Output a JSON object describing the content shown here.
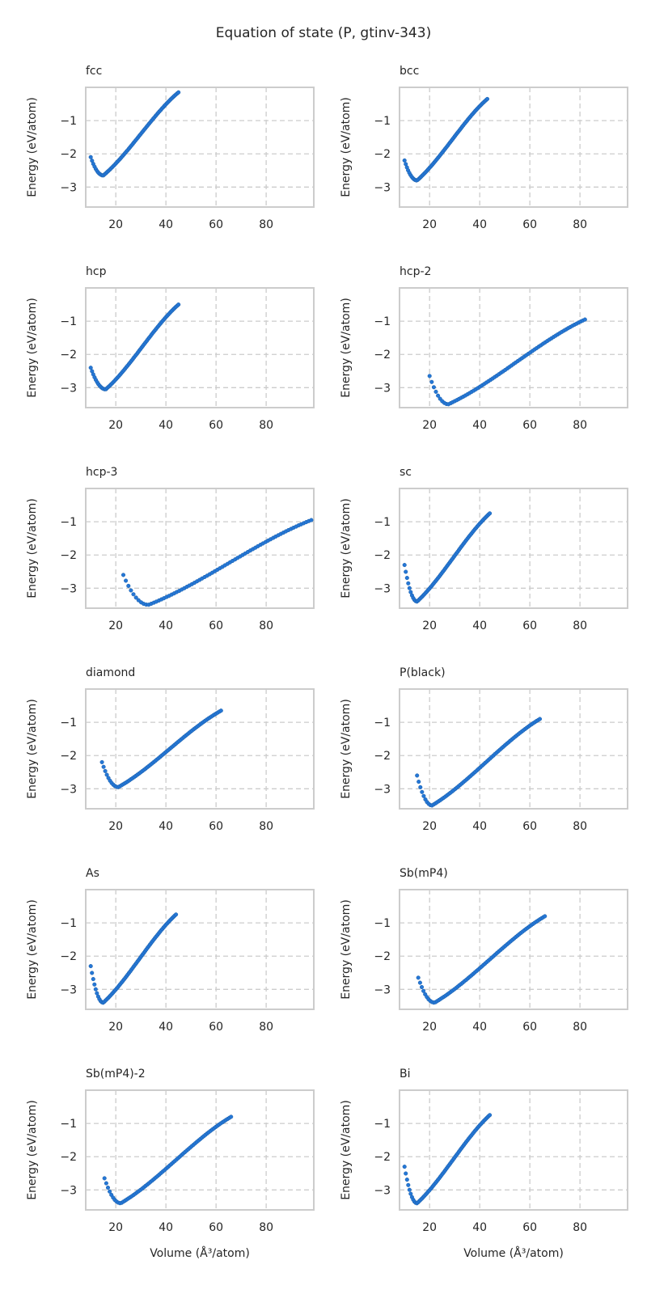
{
  "figure": {
    "title": "Equation of state (P, gtinv-343)",
    "xlabel": "Volume (Å³/atom)",
    "ylabel": "Energy (eV/atom)",
    "point_color": "#2577d6",
    "grid_color": "#cccccc",
    "frame_color": "#cccccc",
    "text_color": "#262626"
  },
  "chart_data": [
    {
      "type": "scatter",
      "title": "fcc",
      "xlabel": "",
      "ylabel": "Energy (eV/atom)",
      "xlim": [
        8,
        99
      ],
      "ylim": [
        -3.6,
        0
      ],
      "xticks": [
        20,
        40,
        60,
        80
      ],
      "yticks": [
        -1,
        -2,
        -3
      ],
      "xticklabels": [
        "20",
        "40",
        "60",
        "80"
      ],
      "yticklabels": [
        "−1",
        "−2",
        "−3"
      ],
      "grid": true,
      "curve": {
        "v_start": 10,
        "v_min": 15,
        "v_end": 45,
        "e_start": -2.1,
        "e_min": -2.65,
        "e_end": -0.15,
        "n": 70
      }
    },
    {
      "type": "scatter",
      "title": "bcc",
      "xlabel": "",
      "ylabel": "Energy (eV/atom)",
      "xlim": [
        8,
        99
      ],
      "ylim": [
        -3.6,
        0
      ],
      "xticks": [
        20,
        40,
        60,
        80
      ],
      "yticks": [
        -1,
        -2,
        -3
      ],
      "xticklabels": [
        "20",
        "40",
        "60",
        "80"
      ],
      "yticklabels": [
        "−1",
        "−2",
        "−3"
      ],
      "grid": true,
      "curve": {
        "v_start": 10,
        "v_min": 15,
        "v_end": 43,
        "e_start": -2.2,
        "e_min": -2.8,
        "e_end": -0.35,
        "n": 70
      }
    },
    {
      "type": "scatter",
      "title": "hcp",
      "xlabel": "",
      "ylabel": "Energy (eV/atom)",
      "xlim": [
        8,
        99
      ],
      "ylim": [
        -3.6,
        0
      ],
      "xticks": [
        20,
        40,
        60,
        80
      ],
      "yticks": [
        -1,
        -2,
        -3
      ],
      "xticklabels": [
        "20",
        "40",
        "60",
        "80"
      ],
      "yticklabels": [
        "−1",
        "−2",
        "−3"
      ],
      "grid": true,
      "curve": {
        "v_start": 10,
        "v_min": 16,
        "v_end": 45,
        "e_start": -2.4,
        "e_min": -3.05,
        "e_end": -0.5,
        "n": 70
      }
    },
    {
      "type": "scatter",
      "title": "hcp-2",
      "xlabel": "",
      "ylabel": "Energy (eV/atom)",
      "xlim": [
        8,
        99
      ],
      "ylim": [
        -3.6,
        0
      ],
      "xticks": [
        20,
        40,
        60,
        80
      ],
      "yticks": [
        -1,
        -2,
        -3
      ],
      "xticklabels": [
        "20",
        "40",
        "60",
        "80"
      ],
      "yticklabels": [
        "−1",
        "−2",
        "−3"
      ],
      "grid": true,
      "curve": {
        "v_start": 20,
        "v_min": 27.5,
        "v_end": 82,
        "e_start": -2.65,
        "e_min": -3.5,
        "e_end": -0.95,
        "n": 75
      }
    },
    {
      "type": "scatter",
      "title": "hcp-3",
      "xlabel": "",
      "ylabel": "Energy (eV/atom)",
      "xlim": [
        8,
        99
      ],
      "ylim": [
        -3.6,
        0
      ],
      "xticks": [
        20,
        40,
        60,
        80
      ],
      "yticks": [
        -1,
        -2,
        -3
      ],
      "xticklabels": [
        "20",
        "40",
        "60",
        "80"
      ],
      "yticklabels": [
        "−1",
        "−2",
        "−3"
      ],
      "grid": true,
      "curve": {
        "v_start": 23,
        "v_min": 33,
        "v_end": 98,
        "e_start": -2.6,
        "e_min": -3.5,
        "e_end": -0.95,
        "n": 75
      }
    },
    {
      "type": "scatter",
      "title": "sc",
      "xlabel": "",
      "ylabel": "Energy (eV/atom)",
      "xlim": [
        8,
        99
      ],
      "ylim": [
        -3.6,
        0
      ],
      "xticks": [
        20,
        40,
        60,
        80
      ],
      "yticks": [
        -1,
        -2,
        -3
      ],
      "xticklabels": [
        "20",
        "40",
        "60",
        "80"
      ],
      "yticklabels": [
        "−1",
        "−2",
        "−3"
      ],
      "grid": true,
      "curve": {
        "v_start": 10,
        "v_min": 15,
        "v_end": 44,
        "e_start": -2.3,
        "e_min": -3.4,
        "e_end": -0.75,
        "n": 70
      }
    },
    {
      "type": "scatter",
      "title": "diamond",
      "xlabel": "",
      "ylabel": "Energy (eV/atom)",
      "xlim": [
        8,
        99
      ],
      "ylim": [
        -3.6,
        0
      ],
      "xticks": [
        20,
        40,
        60,
        80
      ],
      "yticks": [
        -1,
        -2,
        -3
      ],
      "xticklabels": [
        "20",
        "40",
        "60",
        "80"
      ],
      "yticklabels": [
        "−1",
        "−2",
        "−3"
      ],
      "grid": true,
      "curve": {
        "v_start": 14.5,
        "v_min": 21,
        "v_end": 62,
        "e_start": -2.2,
        "e_min": -2.95,
        "e_end": -0.65,
        "n": 75
      }
    },
    {
      "type": "scatter",
      "title": "P(black)",
      "xlabel": "",
      "ylabel": "Energy (eV/atom)",
      "xlim": [
        8,
        99
      ],
      "ylim": [
        -3.6,
        0
      ],
      "xticks": [
        20,
        40,
        60,
        80
      ],
      "yticks": [
        -1,
        -2,
        -3
      ],
      "xticklabels": [
        "20",
        "40",
        "60",
        "80"
      ],
      "yticklabels": [
        "−1",
        "−2",
        "−3"
      ],
      "grid": true,
      "curve": {
        "v_start": 15,
        "v_min": 21,
        "v_end": 64,
        "e_start": -2.6,
        "e_min": -3.5,
        "e_end": -0.9,
        "n": 75
      }
    },
    {
      "type": "scatter",
      "title": "As",
      "xlabel": "",
      "ylabel": "Energy (eV/atom)",
      "xlim": [
        8,
        99
      ],
      "ylim": [
        -3.6,
        0
      ],
      "xticks": [
        20,
        40,
        60,
        80
      ],
      "yticks": [
        -1,
        -2,
        -3
      ],
      "xticklabels": [
        "20",
        "40",
        "60",
        "80"
      ],
      "yticklabels": [
        "−1",
        "−2",
        "−3"
      ],
      "grid": true,
      "curve": {
        "v_start": 10,
        "v_min": 15,
        "v_end": 44,
        "e_start": -2.3,
        "e_min": -3.4,
        "e_end": -0.75,
        "n": 70
      }
    },
    {
      "type": "scatter",
      "title": "Sb(mP4)",
      "xlabel": "",
      "ylabel": "Energy (eV/atom)",
      "xlim": [
        8,
        99
      ],
      "ylim": [
        -3.6,
        0
      ],
      "xticks": [
        20,
        40,
        60,
        80
      ],
      "yticks": [
        -1,
        -2,
        -3
      ],
      "xticklabels": [
        "20",
        "40",
        "60",
        "80"
      ],
      "yticklabels": [
        "−1",
        "−2",
        "−3"
      ],
      "grid": true,
      "curve": {
        "v_start": 15.5,
        "v_min": 22,
        "v_end": 66,
        "e_start": -2.65,
        "e_min": -3.4,
        "e_end": -0.8,
        "n": 75
      }
    },
    {
      "type": "scatter",
      "title": "Sb(mP4)-2",
      "xlabel": "Volume (Å³/atom)",
      "ylabel": "Energy (eV/atom)",
      "xlim": [
        8,
        99
      ],
      "ylim": [
        -3.6,
        0
      ],
      "xticks": [
        20,
        40,
        60,
        80
      ],
      "yticks": [
        -1,
        -2,
        -3
      ],
      "xticklabels": [
        "20",
        "40",
        "60",
        "80"
      ],
      "yticklabels": [
        "−1",
        "−2",
        "−3"
      ],
      "grid": true,
      "curve": {
        "v_start": 15.5,
        "v_min": 22,
        "v_end": 66,
        "e_start": -2.65,
        "e_min": -3.4,
        "e_end": -0.8,
        "n": 75
      }
    },
    {
      "type": "scatter",
      "title": "Bi",
      "xlabel": "Volume (Å³/atom)",
      "ylabel": "Energy (eV/atom)",
      "xlim": [
        8,
        99
      ],
      "ylim": [
        -3.6,
        0
      ],
      "xticks": [
        20,
        40,
        60,
        80
      ],
      "yticks": [
        -1,
        -2,
        -3
      ],
      "xticklabels": [
        "20",
        "40",
        "60",
        "80"
      ],
      "yticklabels": [
        "−1",
        "−2",
        "−3"
      ],
      "grid": true,
      "curve": {
        "v_start": 10,
        "v_min": 15,
        "v_end": 44,
        "e_start": -2.3,
        "e_min": -3.4,
        "e_end": -0.75,
        "n": 70
      }
    }
  ]
}
